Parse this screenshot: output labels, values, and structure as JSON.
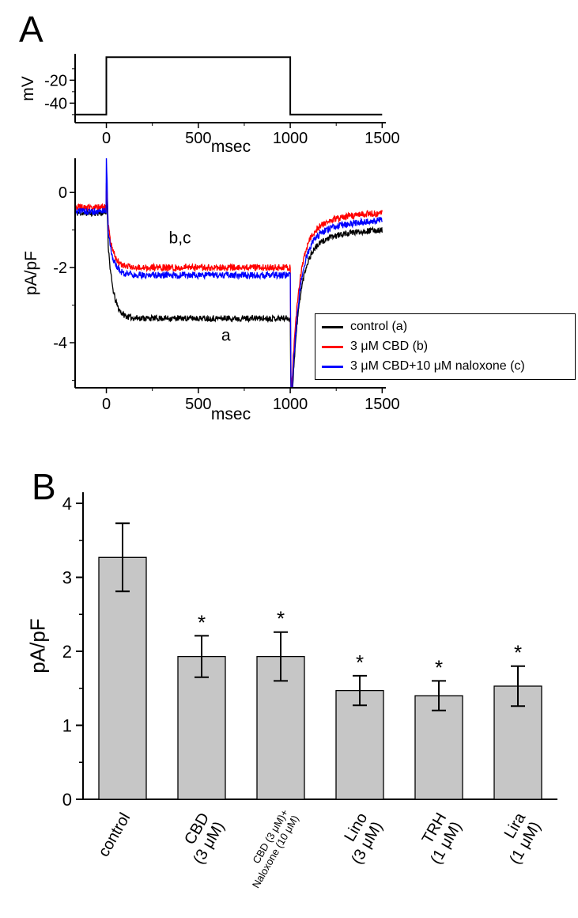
{
  "panels": {
    "a": "A",
    "b": "B"
  },
  "chart_data": [
    {
      "type": "line",
      "id": "voltage-protocol",
      "xlabel": "msec",
      "ylabel": "mV",
      "x_range": [
        -170,
        1520
      ],
      "y_range": [
        -57,
        3
      ],
      "x_ticks": [
        0,
        500,
        1000,
        1500
      ],
      "x_minor_ticks": [
        250,
        750,
        1250
      ],
      "y_ticks": [
        -20,
        -40
      ],
      "y_minor_ticks": [
        -10,
        -30,
        -50
      ],
      "series": [
        {
          "name": "voltage-step",
          "color": "#000000",
          "points": [
            [
              -170,
              -50
            ],
            [
              0,
              -50
            ],
            [
              0,
              0
            ],
            [
              1000,
              0
            ],
            [
              1000,
              -50
            ],
            [
              1500,
              -50
            ]
          ]
        }
      ]
    },
    {
      "type": "line",
      "id": "current-traces",
      "xlabel": "msec",
      "ylabel": "pA/pF",
      "x_range": [
        -170,
        1520
      ],
      "y_range": [
        -5.2,
        0.91
      ],
      "x_ticks": [
        0,
        500,
        1000,
        1500
      ],
      "x_minor_ticks": [
        250,
        750,
        1250
      ],
      "y_ticks": [
        0,
        -2,
        -4
      ],
      "y_minor_ticks": [
        -1,
        -3,
        -5
      ],
      "annotations": [
        {
          "text": "b,c",
          "x": 400,
          "y": -1.35
        },
        {
          "text": "a",
          "x": 650,
          "y": -3.95
        }
      ],
      "series": [
        {
          "name": "control (a)",
          "color": "#000000",
          "baseline": -0.55,
          "steady": -3.35,
          "end": -0.95,
          "peak0": 0.05,
          "tail": -6.0,
          "noise": 0.16
        },
        {
          "name": "3 μM CBD (b)",
          "color": "#ff0000",
          "baseline": -0.4,
          "steady": -2.0,
          "end": -0.5,
          "peak0": 0.3,
          "tail": -5.5,
          "noise": 0.18
        },
        {
          "name": "3 μM CBD+10 μM naloxone (c)",
          "color": "#0000ff",
          "baseline": -0.5,
          "steady": -2.2,
          "end": -0.7,
          "peak0": 0.9,
          "tail": -5.8,
          "noise": 0.18
        }
      ]
    },
    {
      "type": "bar",
      "id": "summary-bar-chart",
      "ylabel": "pA/pF",
      "ylim": [
        0,
        4.15
      ],
      "y_ticks": [
        0,
        1,
        2,
        3,
        4
      ],
      "y_minor_ticks": [
        0.5,
        1.5,
        2.5,
        3.5
      ],
      "bar_color": "#c6c6c6",
      "categories": [
        [
          "control"
        ],
        [
          "CBD",
          "(3 μM)"
        ],
        [
          "CBD (3 μM)+",
          "Naloxone (10 μM)"
        ],
        [
          "Lino",
          "(3 μM)"
        ],
        [
          "TRH",
          "(1 μM)"
        ],
        [
          "Lira",
          "(1 μM)"
        ]
      ],
      "small_labels": [
        false,
        false,
        true,
        false,
        false,
        false
      ],
      "values": [
        3.27,
        1.93,
        1.93,
        1.47,
        1.4,
        1.53
      ],
      "errors": [
        0.46,
        0.28,
        0.33,
        0.2,
        0.2,
        0.27
      ],
      "significance": [
        false,
        true,
        true,
        true,
        true,
        true
      ],
      "sig_symbol": "*"
    }
  ]
}
